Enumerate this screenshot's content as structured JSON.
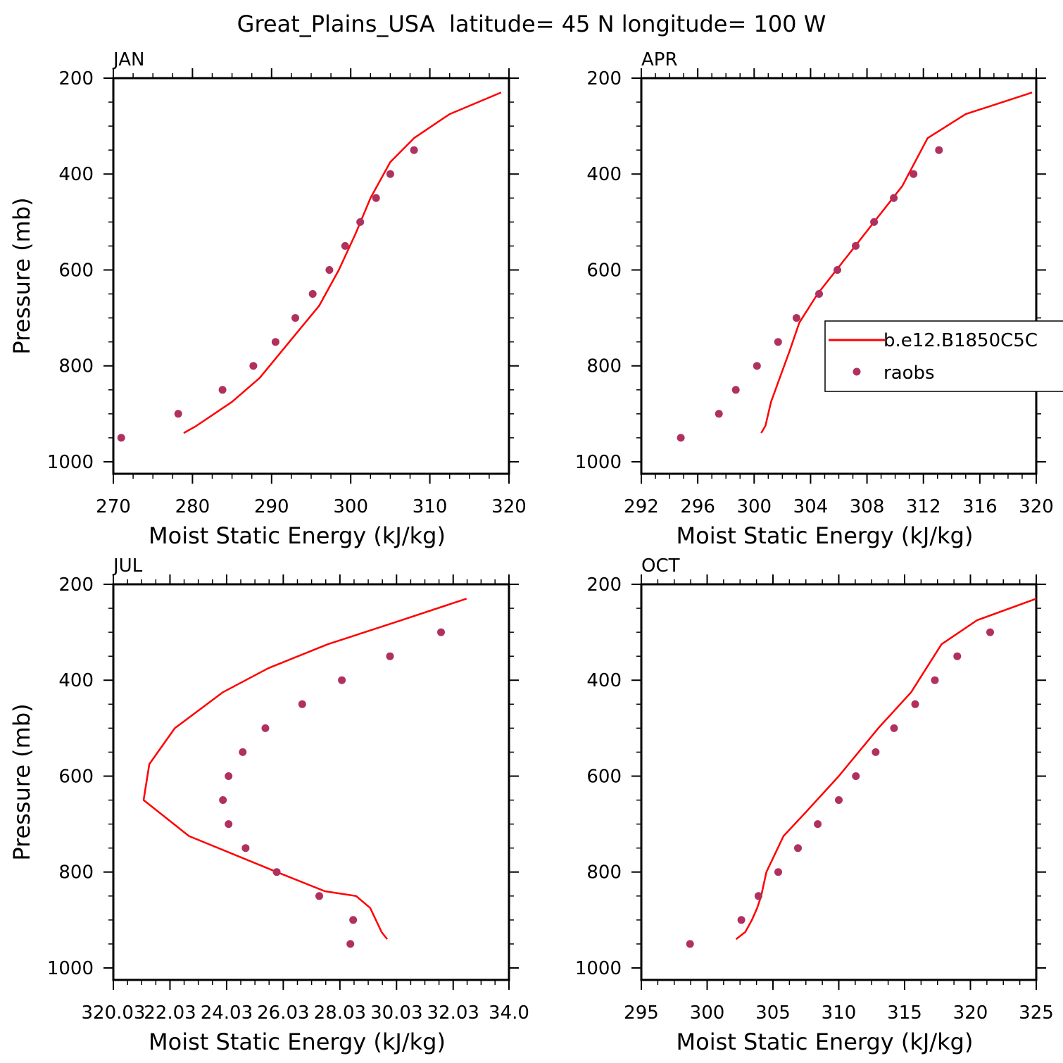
{
  "title": "Great_Plains_USA  latitude= 45 N longitude= 100 W",
  "colors": {
    "model": "#ff0000",
    "obs": "#b03060",
    "axis": "#000000"
  },
  "legend": {
    "placement": "right of APR panel (clipped)",
    "model_label": "b.e12.B1850C5C",
    "obs_label": "raobs"
  },
  "chart_data": [
    {
      "type": "line",
      "panel_label": "JAN",
      "xlabel": "Moist Static Energy (kJ/kg)",
      "ylabel": "Pressure (mb)",
      "xlim": [
        270,
        320
      ],
      "ylim": [
        1025,
        200
      ],
      "xticks": [
        270,
        280,
        290,
        300,
        310,
        320
      ],
      "xtick_labels": [
        "270",
        "280",
        "290",
        "300",
        "310",
        "320"
      ],
      "yticks": [
        200,
        400,
        600,
        800,
        1000
      ],
      "ytick_labels": [
        "200",
        "400",
        "600",
        "800",
        "1000"
      ],
      "series": [
        {
          "name": "b.e12.B1850C5C",
          "kind": "line",
          "x": [
            278.9,
            280.5,
            285.0,
            288.5,
            291.0,
            293.5,
            296.0,
            298.5,
            300.6,
            302.5,
            305.0,
            308.0,
            312.5,
            319.0
          ],
          "y": [
            940,
            925,
            875,
            825,
            775,
            725,
            675,
            600,
            525,
            450,
            375,
            325,
            275,
            230
          ]
        },
        {
          "name": "raobs",
          "kind": "scatter",
          "x": [
            271.0,
            278.2,
            283.8,
            287.7,
            290.5,
            293.0,
            295.2,
            297.3,
            299.3,
            301.2,
            303.2,
            305.0,
            308.0
          ],
          "y": [
            950,
            900,
            850,
            800,
            750,
            700,
            650,
            600,
            550,
            500,
            450,
            400,
            350
          ]
        }
      ]
    },
    {
      "type": "line",
      "panel_label": "APR",
      "xlabel": "Moist Static Energy (kJ/kg)",
      "ylabel": "",
      "xlim": [
        292,
        320
      ],
      "ylim": [
        1025,
        200
      ],
      "xticks": [
        292,
        296,
        300,
        304,
        308,
        312,
        316,
        320
      ],
      "xtick_labels": [
        "292",
        "296",
        "300",
        "304",
        "308",
        "312",
        "316",
        "320"
      ],
      "yticks": [
        200,
        400,
        600,
        800,
        1000
      ],
      "ytick_labels": [
        "200",
        "400",
        "600",
        "800",
        "1000"
      ],
      "series": [
        {
          "name": "b.e12.B1850C5C",
          "kind": "line",
          "x": [
            300.5,
            300.8,
            301.2,
            302.0,
            302.5,
            303.2,
            304.5,
            306.5,
            308.5,
            310.5,
            312.3,
            315.0,
            319.7
          ],
          "y": [
            940,
            925,
            875,
            810,
            770,
            710,
            650,
            575,
            500,
            425,
            325,
            275,
            230
          ]
        },
        {
          "name": "raobs",
          "kind": "scatter",
          "x": [
            294.8,
            297.5,
            298.7,
            300.2,
            301.7,
            303.0,
            304.6,
            305.9,
            307.2,
            308.5,
            309.9,
            311.3,
            313.1
          ],
          "y": [
            950,
            900,
            850,
            800,
            750,
            700,
            650,
            600,
            550,
            500,
            450,
            400,
            350
          ]
        }
      ]
    },
    {
      "type": "line",
      "panel_label": "JUL",
      "xlabel": "Moist Static Energy (kJ/kg)",
      "ylabel": "Pressure (mb)",
      "xlim": [
        320.03,
        334.0
      ],
      "ylim": [
        1025,
        200
      ],
      "xticks": [
        320.03,
        322.03,
        324.03,
        326.03,
        328.03,
        330.03,
        332.03,
        334.0
      ],
      "xtick_labels": [
        "320.03",
        "22.03",
        "24.03",
        "26.03",
        "28.03",
        "30.03",
        "32.03",
        "34.0"
      ],
      "yticks": [
        200,
        400,
        600,
        800,
        1000
      ],
      "ytick_labels": [
        "200",
        "400",
        "600",
        "800",
        "1000"
      ],
      "series": [
        {
          "name": "b.e12.B1850C5C",
          "kind": "line",
          "x": [
            329.7,
            329.5,
            329.1,
            328.6,
            327.5,
            325.8,
            322.7,
            321.1,
            321.3,
            322.2,
            323.9,
            325.5,
            327.6,
            330.2,
            332.5
          ],
          "y": [
            940,
            925,
            875,
            850,
            840,
            800,
            725,
            650,
            575,
            500,
            425,
            375,
            325,
            275,
            230
          ]
        },
        {
          "name": "raobs",
          "kind": "scatter",
          "x": [
            328.4,
            328.5,
            327.3,
            325.8,
            324.7,
            324.1,
            323.9,
            324.1,
            324.6,
            325.4,
            326.7,
            328.1,
            329.8,
            331.6
          ],
          "y": [
            950,
            900,
            850,
            800,
            750,
            700,
            650,
            600,
            550,
            500,
            450,
            400,
            350,
            300
          ]
        }
      ]
    },
    {
      "type": "line",
      "panel_label": "OCT",
      "xlabel": "Moist Static Energy (kJ/kg)",
      "ylabel": "",
      "xlim": [
        295,
        325
      ],
      "ylim": [
        1025,
        200
      ],
      "xticks": [
        295,
        300,
        305,
        310,
        315,
        320,
        325
      ],
      "xtick_labels": [
        "295",
        "300",
        "305",
        "310",
        "315",
        "320",
        "325"
      ],
      "yticks": [
        200,
        400,
        600,
        800,
        1000
      ],
      "ytick_labels": [
        "200",
        "400",
        "600",
        "800",
        "1000"
      ],
      "series": [
        {
          "name": "b.e12.B1850C5C",
          "kind": "line",
          "x": [
            302.2,
            302.9,
            303.4,
            303.8,
            304.1,
            304.5,
            305.8,
            307.5,
            310.0,
            313.0,
            315.5,
            317.8,
            320.5,
            325.0
          ],
          "y": [
            940,
            925,
            900,
            875,
            850,
            800,
            725,
            675,
            600,
            500,
            425,
            325,
            275,
            230
          ]
        },
        {
          "name": "raobs",
          "kind": "scatter",
          "x": [
            298.7,
            302.6,
            303.9,
            305.4,
            306.9,
            308.4,
            310.0,
            311.3,
            312.8,
            314.2,
            315.8,
            317.3,
            319.0,
            321.5
          ],
          "y": [
            950,
            900,
            850,
            800,
            750,
            700,
            650,
            600,
            550,
            500,
            450,
            400,
            350,
            300
          ]
        }
      ]
    }
  ]
}
